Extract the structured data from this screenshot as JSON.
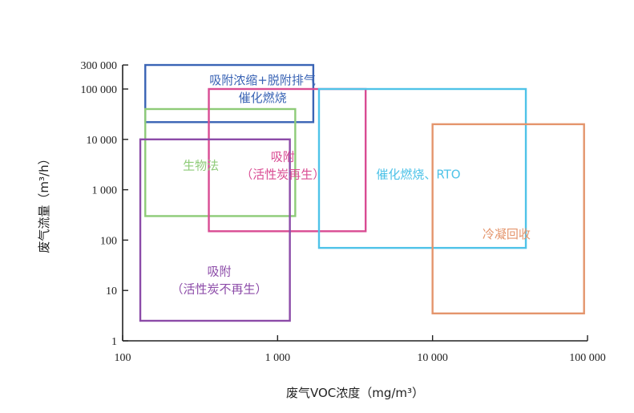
{
  "chart_data": {
    "type": "box-region",
    "title": "",
    "xlabel": "废气VOC浓度（mg/m³）",
    "ylabel": "废气流量（m³/h）",
    "xscale": "log",
    "yscale": "log",
    "xlim": [
      100,
      100000
    ],
    "ylim": [
      1,
      300000
    ],
    "xticks": [
      {
        "value": 100,
        "label": "100"
      },
      {
        "value": 1000,
        "label": "1 000"
      },
      {
        "value": 10000,
        "label": "10 000"
      },
      {
        "value": 100000,
        "label": "100 000"
      }
    ],
    "yticks": [
      {
        "value": 1,
        "label": "1"
      },
      {
        "value": 10,
        "label": "10"
      },
      {
        "value": 100,
        "label": "100"
      },
      {
        "value": 1000,
        "label": "1 000"
      },
      {
        "value": 10000,
        "label": "10 000"
      },
      {
        "value": 100000,
        "label": "100 000"
      },
      {
        "value": 300000,
        "label": "300 000"
      }
    ],
    "regions": [
      {
        "name": "adsorption-concentration",
        "label_lines": [
          "吸附浓缩+脱附排气",
          "催化燃烧"
        ],
        "color": "#3a64b5",
        "x": [
          140,
          1700
        ],
        "y": [
          22000,
          300000
        ],
        "label_at": [
          800,
          100000
        ]
      },
      {
        "name": "biological",
        "label_lines": [
          "生物法"
        ],
        "color": "#8ecb78",
        "x": [
          140,
          1300
        ],
        "y": [
          300,
          40000
        ],
        "label_at": [
          320,
          3000
        ]
      },
      {
        "name": "adsorption-carbon-regen",
        "label_lines": [
          "吸附",
          "（活性炭再生）"
        ],
        "color": "#d94c93",
        "x": [
          360,
          3700
        ],
        "y": [
          150,
          100000
        ],
        "label_at": [
          1080,
          3000
        ]
      },
      {
        "name": "catalytic-rto",
        "label_lines": [
          "催化燃烧、RTO"
        ],
        "color": "#4fc3e8",
        "x": [
          1850,
          40000
        ],
        "y": [
          70,
          100000
        ],
        "label_at": [
          8100,
          2000
        ]
      },
      {
        "name": "condensation",
        "label_lines": [
          "冷凝回收"
        ],
        "color": "#e4956c",
        "x": [
          10000,
          95000
        ],
        "y": [
          3.5,
          20000
        ],
        "label_at": [
          30000,
          130
        ]
      },
      {
        "name": "adsorption-no-regen",
        "label_lines": [
          "吸附",
          "（活性炭不再生）"
        ],
        "color": "#8c4ba8",
        "x": [
          130,
          1200
        ],
        "y": [
          2.5,
          10000
        ],
        "label_at": [
          420,
          16
        ]
      }
    ]
  }
}
